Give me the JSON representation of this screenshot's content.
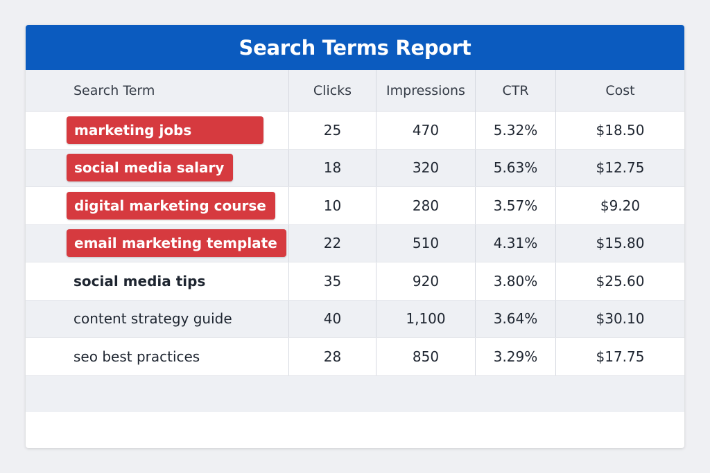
{
  "header": {
    "title": "Search Terms Report"
  },
  "table": {
    "headers": [
      "Search Term",
      "Clicks",
      "Impressions",
      "CTR",
      "Cost"
    ],
    "rows": [
      [
        "marketing jobs",
        "25",
        "470",
        "5.32%",
        "$18.50"
      ],
      [
        "social media salary",
        "18",
        "320",
        "5.63%",
        "$12.75"
      ],
      [
        "digital marketing course",
        "10",
        "280",
        "3.57%",
        "$9.20"
      ],
      [
        "email marketing template",
        "22",
        "510",
        "4.31%",
        "$15.80"
      ],
      [
        "social media tips",
        "35",
        "920",
        "3.80%",
        "$25.60"
      ],
      [
        "content strategy guide",
        "40",
        "1,100",
        "3.64%",
        "$30.10"
      ],
      [
        "seo best practices",
        "28",
        "850",
        "3.29%",
        "$17.75"
      ]
    ]
  }
}
